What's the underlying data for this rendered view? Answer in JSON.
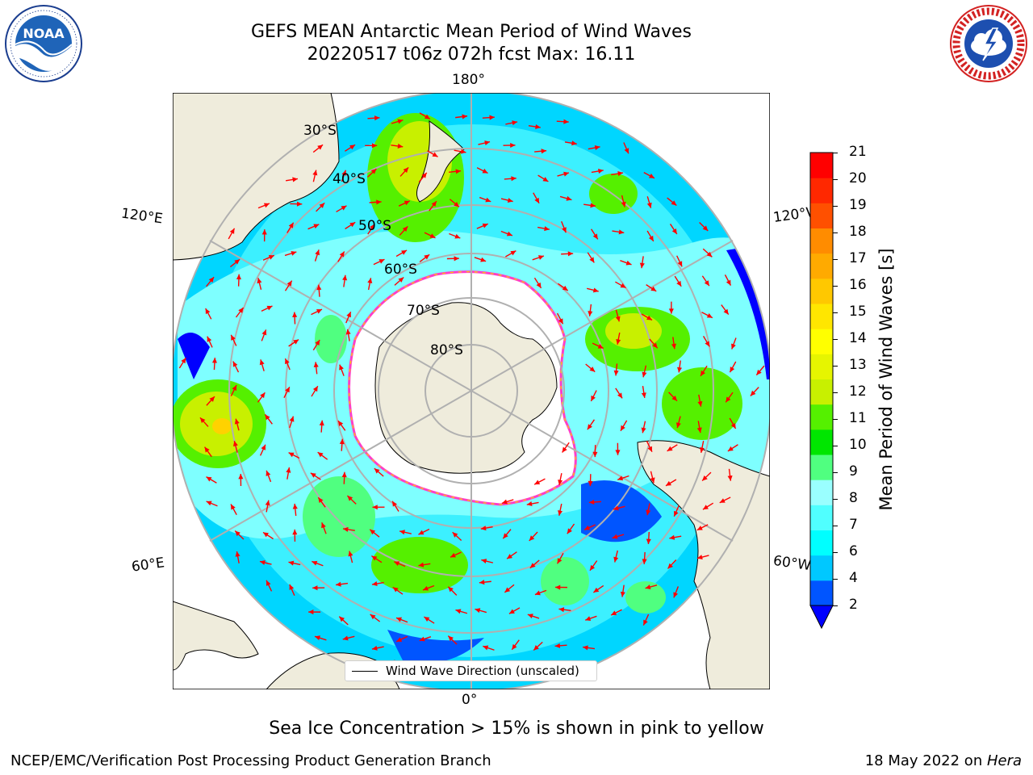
{
  "header": {
    "title_line1": "GEFS MEAN Antarctic Mean Period of Wind Waves",
    "title_line2": "20220517 t06z 072h fcst   Max: 16.11"
  },
  "logos": {
    "left": {
      "name": "NOAA",
      "text": "NOAA",
      "ring_text": "NATIONAL OCEANIC AND ATMOSPHERIC ADMINISTRATION · U.S. DEPARTMENT OF COMMERCE"
    },
    "right": {
      "name": "National Weather Service",
      "ring_text": "NATIONAL WEATHER SERVICE"
    }
  },
  "map": {
    "projection": "south polar stereographic",
    "longitude_labels": {
      "top": "180°",
      "bottom": "0°",
      "left_upper": "120°E",
      "left_lower": "60°E",
      "right_upper": "120°W",
      "right_lower": "60°W"
    },
    "latitude_labels": [
      "30°S",
      "40°S",
      "50°S",
      "60°S",
      "70°S",
      "80°S"
    ],
    "legend": {
      "label": "Wind Wave Direction (unscaled)"
    },
    "colors": {
      "land": "#efecdc",
      "ice_edge_pink": "#ff3ec8",
      "ice_edge_yellow": "#ffd200",
      "arrow": "#ff0000",
      "grid": "#b0b0b0"
    }
  },
  "colorbar": {
    "label": "Mean Period of Wind Waves [s]",
    "ticks": [
      "2",
      "4",
      "6",
      "7",
      "8",
      "9",
      "10",
      "11",
      "12",
      "13",
      "14",
      "15",
      "16",
      "17",
      "18",
      "19",
      "20",
      "21"
    ],
    "levels": [
      2,
      4,
      6,
      7,
      8,
      9,
      10,
      11,
      12,
      13,
      14,
      15,
      16,
      17,
      18,
      19,
      20,
      21
    ],
    "colors": [
      "#0055ff",
      "#00c8ff",
      "#00ffff",
      "#50ffff",
      "#9affff",
      "#50ff80",
      "#00e600",
      "#55f000",
      "#c8f000",
      "#e6f500",
      "#ffff00",
      "#ffe600",
      "#ffc800",
      "#ffaa00",
      "#ff8c00",
      "#ff5000",
      "#ff2800",
      "#ff0000"
    ],
    "under_color": "#0000ff",
    "extend": "min"
  },
  "notes": {
    "sea_ice": "Sea Ice Concentration > 15% is shown in pink to yellow"
  },
  "footer": {
    "left": "NCEP/EMC/Verification Post Processing Product Generation Branch",
    "right_date": "18 May 2022 on ",
    "right_host": "Hera"
  }
}
